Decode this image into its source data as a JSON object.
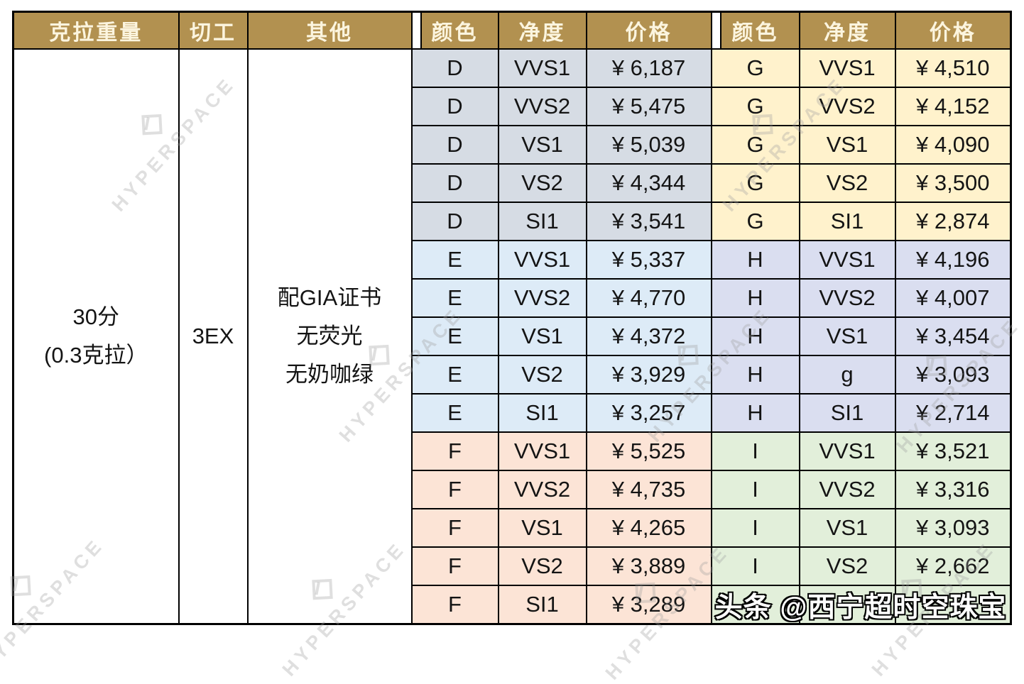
{
  "table": {
    "headers": [
      "克拉重量",
      "切工",
      "其他",
      "颜色",
      "净度",
      "价格",
      "颜色",
      "净度",
      "价格"
    ],
    "merged": {
      "carat_lines": [
        "30分",
        "(0.3克拉）"
      ],
      "cut": "3EX",
      "other_lines": [
        "配GIA证书",
        "无荧光",
        "无奶咖绿"
      ]
    },
    "rows": [
      {
        "lg": "d",
        "l": [
          "D",
          "VVS1",
          "¥ 6,187"
        ],
        "rg": "g",
        "r": [
          "G",
          "VVS1",
          "¥ 4,510"
        ]
      },
      {
        "lg": "d",
        "l": [
          "D",
          "VVS2",
          "¥ 5,475"
        ],
        "rg": "g",
        "r": [
          "G",
          "VVS2",
          "¥ 4,152"
        ]
      },
      {
        "lg": "d",
        "l": [
          "D",
          "VS1",
          "¥ 5,039"
        ],
        "rg": "g",
        "r": [
          "G",
          "VS1",
          "¥ 4,090"
        ]
      },
      {
        "lg": "d",
        "l": [
          "D",
          "VS2",
          "¥ 4,344"
        ],
        "rg": "g",
        "r": [
          "G",
          "VS2",
          "¥ 3,500"
        ]
      },
      {
        "lg": "d",
        "l": [
          "D",
          "SI1",
          "¥ 3,541"
        ],
        "rg": "g",
        "r": [
          "G",
          "SI1",
          "¥ 2,874"
        ]
      },
      {
        "lg": "e",
        "l": [
          "E",
          "VVS1",
          "¥ 5,337"
        ],
        "rg": "h",
        "r": [
          "H",
          "VVS1",
          "¥ 4,196"
        ]
      },
      {
        "lg": "e",
        "l": [
          "E",
          "VVS2",
          "¥ 4,770"
        ],
        "rg": "h",
        "r": [
          "H",
          "VVS2",
          "¥ 4,007"
        ]
      },
      {
        "lg": "e",
        "l": [
          "E",
          "VS1",
          "¥ 4,372"
        ],
        "rg": "h",
        "r": [
          "H",
          "VS1",
          "¥ 3,454"
        ]
      },
      {
        "lg": "e",
        "l": [
          "E",
          "VS2",
          "¥ 3,929"
        ],
        "rg": "h",
        "r": [
          "H",
          "g",
          "¥ 3,093"
        ]
      },
      {
        "lg": "e",
        "l": [
          "E",
          "SI1",
          "¥ 3,257"
        ],
        "rg": "h",
        "r": [
          "H",
          "SI1",
          "¥ 2,714"
        ]
      },
      {
        "lg": "f",
        "l": [
          "F",
          "VVS1",
          "¥ 5,525"
        ],
        "rg": "i",
        "r": [
          "I",
          "VVS1",
          "¥ 3,521"
        ]
      },
      {
        "lg": "f",
        "l": [
          "F",
          "VVS2",
          "¥ 4,735"
        ],
        "rg": "i",
        "r": [
          "I",
          "VVS2",
          "¥ 3,316"
        ]
      },
      {
        "lg": "f",
        "l": [
          "F",
          "VS1",
          "¥ 4,265"
        ],
        "rg": "i",
        "r": [
          "I",
          "VS1",
          "¥ 3,093"
        ]
      },
      {
        "lg": "f",
        "l": [
          "F",
          "VS2",
          "¥ 3,889"
        ],
        "rg": "i",
        "r": [
          "I",
          "VS2",
          "¥ 2,662"
        ]
      },
      {
        "lg": "f",
        "l": [
          "F",
          "SI1",
          "¥ 3,289"
        ],
        "rg": "i",
        "r": [
          "",
          "",
          ""
        ]
      }
    ]
  },
  "overlays": {
    "byline_watermark": "头条 @西宁超时空珠宝",
    "brand_watermark_text": "HYPERSPACE"
  },
  "palette": {
    "header_bg": "#B29150",
    "header_text": "#FCF5DF",
    "block_d": "#D6DCE4",
    "block_e": "#DDEBF7",
    "block_f": "#FCE4D6",
    "block_g": "#FFF2CC",
    "block_h": "#DADEF0",
    "block_i": "#E2EFDA",
    "border": "#000000",
    "byline_fill": "#FFFFFF",
    "byline_outline": "#000000"
  }
}
